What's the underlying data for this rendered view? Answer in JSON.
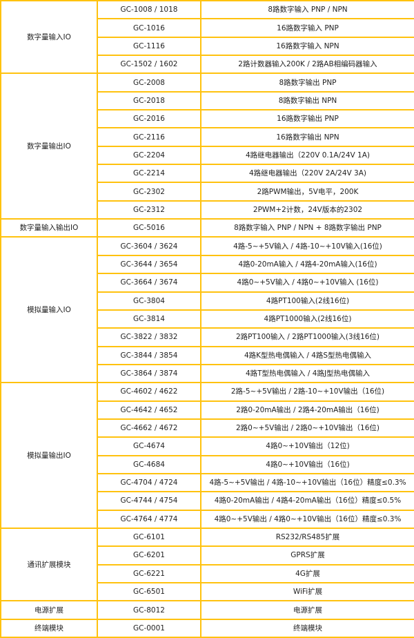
{
  "border_color": "#FFC20E",
  "groups": [
    {
      "category": "数字量输入IO",
      "rows": [
        {
          "model": "GC-1008 / 1018",
          "desc": "8路数字输入 PNP / NPN"
        },
        {
          "model": "GC-1016",
          "desc": "16路数字输入 PNP"
        },
        {
          "model": "GC-1116",
          "desc": "16路数字输入 NPN"
        },
        {
          "model": "GC-1502 / 1602",
          "desc": "2路计数器输入200K / 2路AB相编码器输入"
        }
      ]
    },
    {
      "category": "数字量输出IO",
      "rows": [
        {
          "model": "GC-2008",
          "desc": "8路数字输出 PNP"
        },
        {
          "model": "GC-2018",
          "desc": "8路数字输出 NPN"
        },
        {
          "model": "GC-2016",
          "desc": "16路数字输出 PNP"
        },
        {
          "model": "GC-2116",
          "desc": "16路数字输出 NPN"
        },
        {
          "model": "GC-2204",
          "desc": "4路继电器输出（220V 0.1A/24V 1A)"
        },
        {
          "model": "GC-2214",
          "desc": "4路继电器输出（220V 2A/24V 3A)"
        },
        {
          "model": "GC-2302",
          "desc": "2路PWM输出，5V电平，200K"
        },
        {
          "model": "GC-2312",
          "desc": "2PWM+2计数，24V版本的2302"
        }
      ]
    },
    {
      "category": "数字量输入输出IO",
      "rows": [
        {
          "model": "GC-5016",
          "desc": "8路数字输入 PNP / NPN + 8路数字输出 PNP"
        }
      ]
    },
    {
      "category": "模拟量输入IO",
      "rows": [
        {
          "model": "GC-3604 / 3624",
          "desc": "4路-5~+5V输入 / 4路-10~+10V输入(16位)"
        },
        {
          "model": "GC-3644 / 3654",
          "desc": "4路0-20mA输入 / 4路4-20mA输入(16位)"
        },
        {
          "model": "GC-3664 / 3674",
          "desc": "4路0~+5V输入 / 4路0~+10V输入 (16位)"
        },
        {
          "model": "GC-3804",
          "desc": "4路PT100输入(2线16位)"
        },
        {
          "model": "GC-3814",
          "desc": "4路PT1000输入(2线16位)"
        },
        {
          "model": "GC-3822 / 3832",
          "desc": "2路PT100输入 / 2路PT1000输入(3线16位)"
        },
        {
          "model": "GC-3844 / 3854",
          "desc": "4路K型热电偶输入 / 4路S型热电偶输入"
        },
        {
          "model": "GC-3864 / 3874",
          "desc": "4路T型热电偶输入 / 4路J型热电偶输入"
        }
      ]
    },
    {
      "category": "模拟量输出IO",
      "rows": [
        {
          "model": "GC-4602 / 4622",
          "desc": "2路-5~+5V输出 / 2路-10~+10V输出（16位)"
        },
        {
          "model": "GC-4642 / 4652",
          "desc": "2路0-20mA输出 / 2路4-20mA输出（16位)"
        },
        {
          "model": "GC-4662 / 4672",
          "desc": "2路0~+5V输出 / 2路0~+10V输出（16位)"
        },
        {
          "model": "GC-4674",
          "desc": "4路0~+10V输出（12位)"
        },
        {
          "model": "GC-4684",
          "desc": "4路0~+10V输出（16位)"
        },
        {
          "model": "GC-4704 / 4724",
          "desc": "4路-5~+5V输出 / 4路-10~+10V输出（16位）精度≤0.3%"
        },
        {
          "model": "GC-4744 / 4754",
          "desc": "4路0-20mA输出 / 4路4-20mA输出（16位）精度≤0.5%"
        },
        {
          "model": "GC-4764 / 4774",
          "desc": "4路0~+5V输出 / 4路0~+10V输出（16位）精度≤0.3%"
        }
      ]
    },
    {
      "category": "通讯扩展模块",
      "rows": [
        {
          "model": "GC-6101",
          "desc": "RS232/RS485扩展"
        },
        {
          "model": "GC-6201",
          "desc": "GPRS扩展"
        },
        {
          "model": "GC-6221",
          "desc": "4G扩展"
        },
        {
          "model": "GC-6501",
          "desc": "WiFi扩展"
        }
      ]
    },
    {
      "category": "电源扩展",
      "rows": [
        {
          "model": "GC-8012",
          "desc": "电源扩展"
        }
      ]
    },
    {
      "category": "终端模块",
      "rows": [
        {
          "model": "GC-0001",
          "desc": "终端模块"
        }
      ]
    }
  ]
}
